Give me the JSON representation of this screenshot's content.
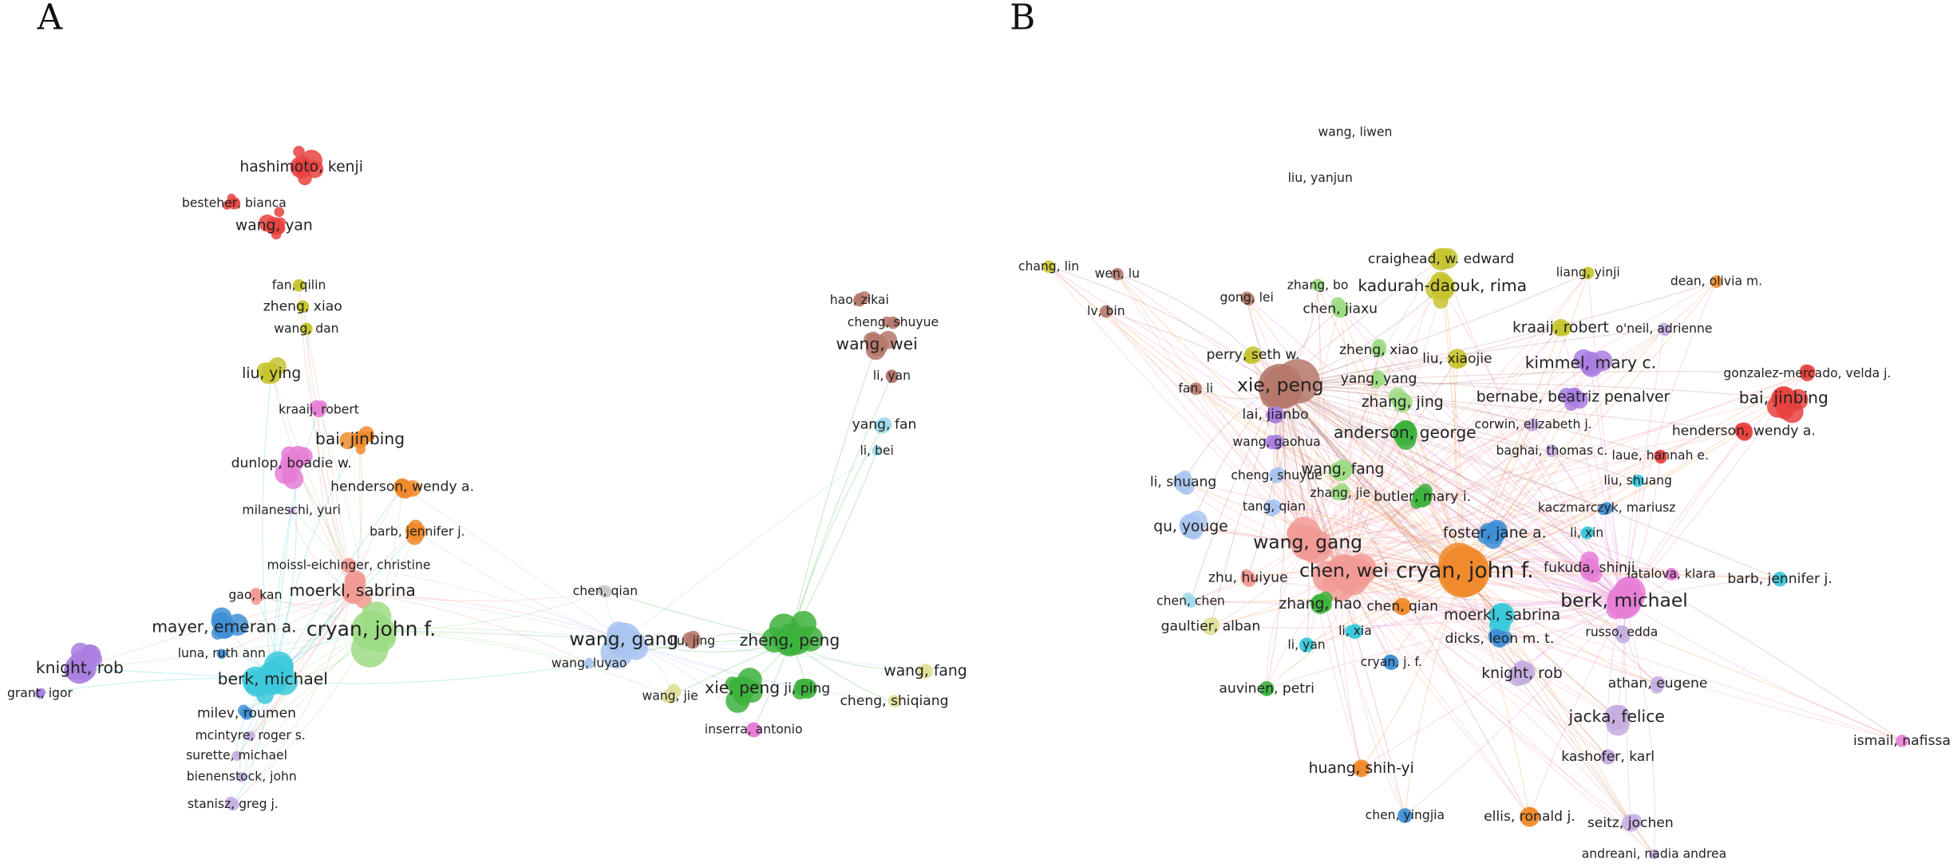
{
  "panels": [
    {
      "label": "A",
      "nodes": [
        {
          "label": "hashimoto, kenji"
        },
        {
          "label": "besteher, bianca"
        },
        {
          "label": "wang, yan"
        },
        {
          "label": "fan, qilin"
        },
        {
          "label": "zheng, xiao"
        },
        {
          "label": "wang, dan"
        },
        {
          "label": "liu, ying"
        },
        {
          "label": "kraaij, robert"
        },
        {
          "label": "bai, jinbing"
        },
        {
          "label": "dunlop, boadie w."
        },
        {
          "label": "henderson, wendy a."
        },
        {
          "label": "milaneschi, yuri"
        },
        {
          "label": "barb, jennifer j."
        },
        {
          "label": "moissl-eichinger, christine"
        },
        {
          "label": "gao, kan"
        },
        {
          "label": "moerkl, sabrina"
        },
        {
          "label": "cryan, john f."
        },
        {
          "label": "mayer, emeran a."
        },
        {
          "label": "luna, ruth ann"
        },
        {
          "label": "knight, rob"
        },
        {
          "label": "grant, igor"
        },
        {
          "label": "berk, michael"
        },
        {
          "label": "milev, roumen"
        },
        {
          "label": "mcintyre, roger s."
        },
        {
          "label": "surette, michael"
        },
        {
          "label": "bienenstock, john"
        },
        {
          "label": "stanisz, greg j."
        },
        {
          "label": "chen, qian"
        },
        {
          "label": "wang, gang"
        },
        {
          "label": "liu, jing"
        },
        {
          "label": "wang, luyao"
        },
        {
          "label": "zheng, peng"
        },
        {
          "label": "xie, peng"
        },
        {
          "label": "ji, ping"
        },
        {
          "label": "wang, jie"
        },
        {
          "label": "inserra, antonio"
        },
        {
          "label": "hao, zikai"
        },
        {
          "label": "cheng, shuyue"
        },
        {
          "label": "wang, wei"
        },
        {
          "label": "li, yan"
        },
        {
          "label": "yang, fan"
        },
        {
          "label": "li, bei"
        },
        {
          "label": "wang, fang"
        },
        {
          "label": "cheng, shiqiang"
        }
      ]
    },
    {
      "label": "B",
      "nodes": [
        {
          "label": "wang, liwen"
        },
        {
          "label": "liu, yanjun"
        },
        {
          "label": "chang, lin"
        },
        {
          "label": "wen, lu"
        },
        {
          "label": "lv, bin"
        },
        {
          "label": "craighead, w. edward"
        },
        {
          "label": "liang, yinji"
        },
        {
          "label": "dean, olivia m."
        },
        {
          "label": "gong, lei"
        },
        {
          "label": "zhang, bo"
        },
        {
          "label": "kadurah-daouk, rima"
        },
        {
          "label": "chen, jiaxu"
        },
        {
          "label": "kraaij, robert"
        },
        {
          "label": "o'neil, adrienne"
        },
        {
          "label": "zheng, xiao"
        },
        {
          "label": "perry, seth w."
        },
        {
          "label": "liu, xiaojie"
        },
        {
          "label": "kimmel, mary c."
        },
        {
          "label": "gonzalez-mercado, velda j."
        },
        {
          "label": "xie, peng"
        },
        {
          "label": "fan, li"
        },
        {
          "label": "bai, jinbing"
        },
        {
          "label": "bernabe, beatriz penalver"
        },
        {
          "label": "yang, yang"
        },
        {
          "label": "zhang, jing"
        },
        {
          "label": "lai, jianbo"
        },
        {
          "label": "corwin, elizabeth j."
        },
        {
          "label": "anderson, george"
        },
        {
          "label": "henderson, wendy a."
        },
        {
          "label": "wang, gaohua"
        },
        {
          "label": "baghai, thomas c."
        },
        {
          "label": "laue, hannah e."
        },
        {
          "label": "wang, fang"
        },
        {
          "label": "cheng, shuyue"
        },
        {
          "label": "liu, shuang"
        },
        {
          "label": "li, shuang"
        },
        {
          "label": "zhang, jie"
        },
        {
          "label": "butler, mary i."
        },
        {
          "label": "kaczmarczyk, mariusz"
        },
        {
          "label": "tang, qian"
        },
        {
          "label": "li, xin"
        },
        {
          "label": "qu, youge"
        },
        {
          "label": "foster, jane a."
        },
        {
          "label": "wang, gang"
        },
        {
          "label": "fukuda, shinji"
        },
        {
          "label": "latalova, klara"
        },
        {
          "label": "chen, wei"
        },
        {
          "label": "cryan, john f."
        },
        {
          "label": "barb, jennifer j."
        },
        {
          "label": "zhu, huiyue"
        },
        {
          "label": "berk, michael"
        },
        {
          "label": "chen, chen"
        },
        {
          "label": "zhang, hao"
        },
        {
          "label": "chen, qian"
        },
        {
          "label": "moerkl, sabrina"
        },
        {
          "label": "gaultier, alban"
        },
        {
          "label": "russo, edda"
        },
        {
          "label": "li, xia"
        },
        {
          "label": "dicks, leon m. t."
        },
        {
          "label": "li, yan"
        },
        {
          "label": "cryan, j. f."
        },
        {
          "label": "knight, rob"
        },
        {
          "label": "athan, eugene"
        },
        {
          "label": "auvinen, petri"
        },
        {
          "label": "jacka, felice"
        },
        {
          "label": "ismail, nafissa"
        },
        {
          "label": "kashofer, karl"
        },
        {
          "label": "huang, shih-yi"
        },
        {
          "label": "chen, yingjia"
        },
        {
          "label": "ellis, ronald j."
        },
        {
          "label": "seitz, jochen"
        },
        {
          "label": "andreani, nadia andrea"
        }
      ]
    }
  ]
}
